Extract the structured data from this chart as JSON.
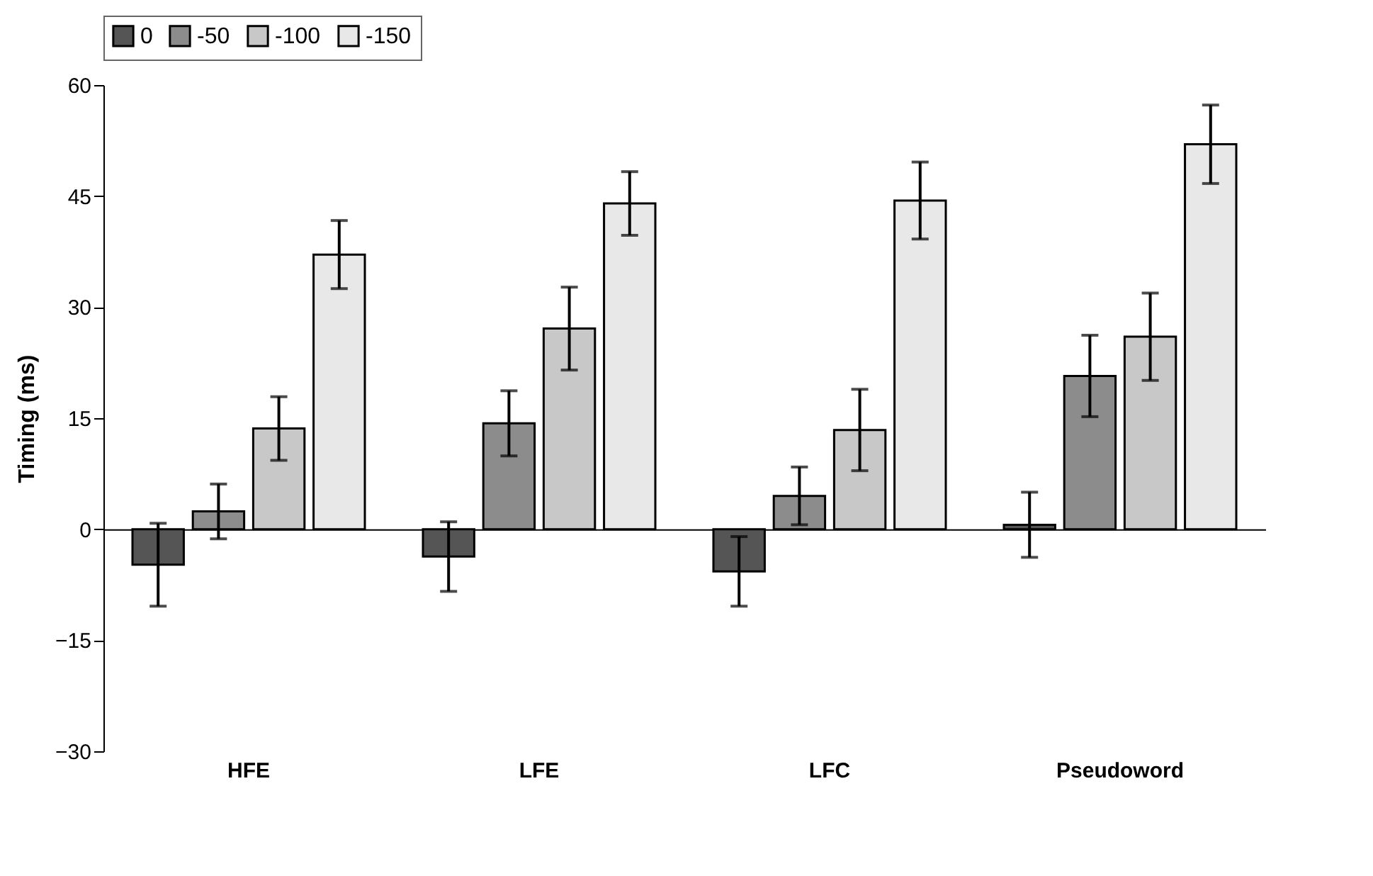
{
  "chart_data": {
    "type": "bar",
    "ylabel": "Timing (ms)",
    "categories": [
      "HFE",
      "LFE",
      "LFC",
      "Pseudoword"
    ],
    "series": [
      {
        "name": "0",
        "color": "#555555",
        "values": [
          -4.8,
          -3.7,
          -5.7,
          0.6
        ],
        "errors": [
          5.6,
          4.7,
          4.7,
          4.4
        ]
      },
      {
        "name": "-50",
        "color": "#8c8c8c",
        "values": [
          2.4,
          14.3,
          4.5,
          20.7
        ],
        "errors": [
          3.7,
          4.4,
          3.9,
          5.5
        ]
      },
      {
        "name": "-100",
        "color": "#c8c8c8",
        "values": [
          13.6,
          27.1,
          13.4,
          26.0
        ],
        "errors": [
          4.3,
          5.6,
          5.5,
          5.9
        ]
      },
      {
        "name": "-150",
        "color": "#e8e8e8",
        "values": [
          37.1,
          44.0,
          44.4,
          52.0
        ],
        "errors": [
          4.6,
          4.3,
          5.2,
          5.3
        ]
      }
    ],
    "ylim": [
      -30,
      60
    ],
    "yticks": [
      -30,
      -15,
      0,
      15,
      30,
      45,
      60
    ],
    "legend": "top"
  }
}
